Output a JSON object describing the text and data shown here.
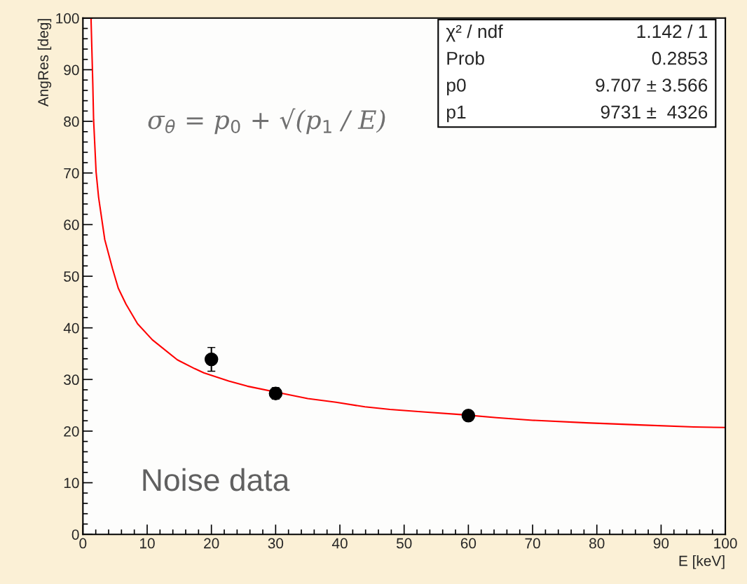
{
  "chart_data": {
    "type": "scatter",
    "xlabel": "E [keV]",
    "ylabel": "AngRes [deg]",
    "xlim": [
      0,
      100
    ],
    "ylim": [
      0,
      100
    ],
    "xticks": [
      0,
      10,
      20,
      30,
      40,
      50,
      60,
      70,
      80,
      90,
      100
    ],
    "yticks": [
      0,
      10,
      20,
      30,
      40,
      50,
      60,
      70,
      80,
      90,
      100
    ],
    "grid": false,
    "legend": false,
    "series": [
      {
        "type": "line",
        "color": "#ff0000",
        "marker": "none",
        "line_style": "solid",
        "x": [
          1.26,
          1.54,
          1.66,
          2.05,
          2.44,
          3.4,
          4.6,
          5.5,
          6.7,
          8.5,
          10.8,
          14.7,
          17.4,
          18.8,
          22.7,
          25.6,
          31.1,
          35.0,
          39.4,
          43.9,
          47.8,
          53.3,
          58.9,
          64.4,
          70.0,
          78.4,
          86.7,
          95.1,
          100
        ],
        "values": [
          100,
          87.2,
          80.4,
          70.2,
          65.3,
          57.1,
          51.5,
          47.7,
          44.6,
          40.8,
          37.7,
          33.8,
          32.1,
          31.3,
          29.7,
          28.7,
          27.3,
          26.3,
          25.6,
          24.7,
          24.2,
          23.7,
          23.2,
          22.6,
          22.1,
          21.6,
          21.2,
          20.8,
          20.7
        ]
      },
      {
        "color": "#000000",
        "marker": "circle",
        "x": [
          20,
          30,
          60
        ],
        "values": [
          33.9,
          27.3,
          23.0
        ],
        "errors": [
          2.3,
          1.1,
          null
        ]
      }
    ],
    "annotations": [
      "σ$_{θ}$ = p$_{0}$ + √(p$_{1}$ / E)",
      "Noise data",
      "χ² / ndf",
      "1.142 / 1",
      "Prob",
      "0.2853",
      "p0",
      "9.707 ± 3.566",
      "p1",
      "9731 ±  4326"
    ]
  }
}
